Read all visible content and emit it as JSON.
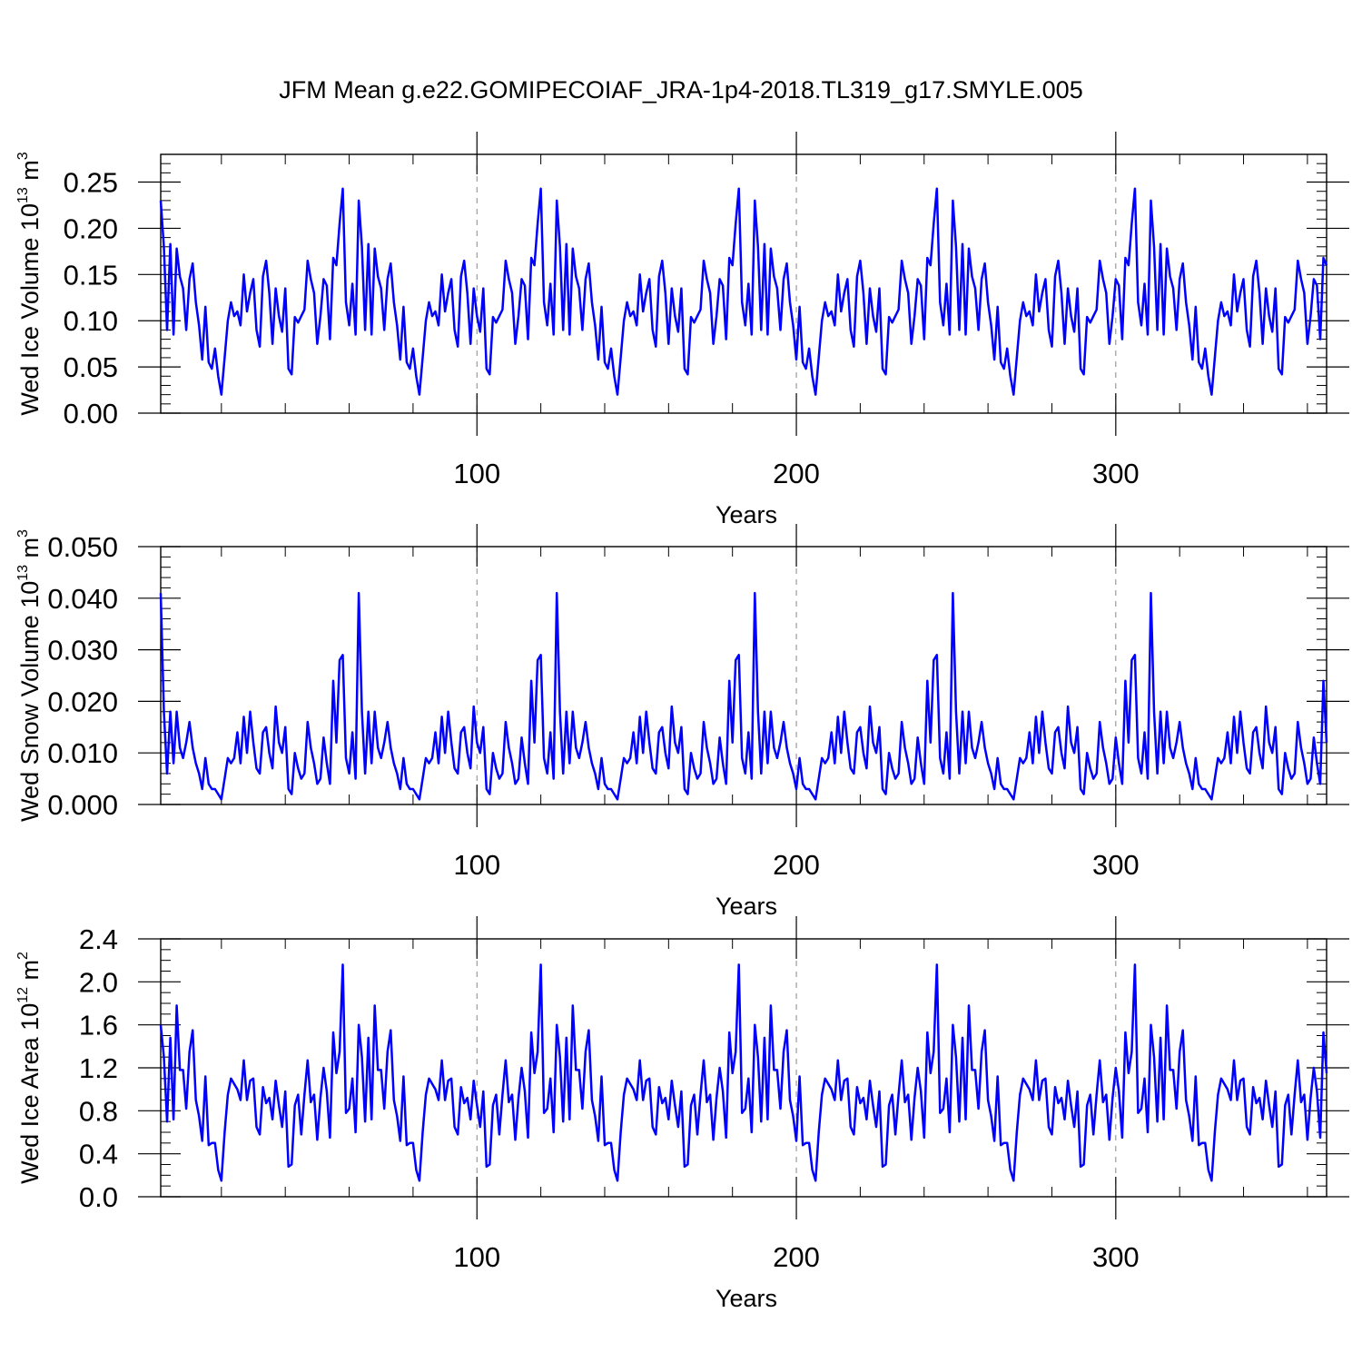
{
  "title": "JFM Mean g.e22.GOMIPECOIAF_JRA-1p4-2018.TL319_g17.SMYLE.005",
  "colors": {
    "series": "#0000ff",
    "axis": "#000000",
    "grid": "#888888"
  },
  "chart_data": [
    {
      "type": "line",
      "name": "ice-volume",
      "ylabel_main": "Wed Ice Volume 10",
      "ylabel_exp": "13",
      "ylabel_unit": " m",
      "ylabel_unit_exp": "3",
      "xlabel": "Years",
      "xlim": [
        1,
        366
      ],
      "ylim": [
        0,
        0.28
      ],
      "y_major_ticks": [
        0,
        0.05,
        0.1,
        0.15,
        0.2,
        0.25
      ],
      "y_tick_labels": [
        "0.00",
        "0.05",
        "0.10",
        "0.15",
        "0.20",
        "0.25"
      ],
      "y_minor_step": 0.01,
      "x_major_ticks": [
        100,
        200,
        300
      ],
      "x_tick_labels": [
        "100",
        "200",
        "300"
      ],
      "x_minor_step": 20,
      "vertical_gridlines": [
        100,
        200,
        300
      ],
      "cycle_length": 62,
      "values": [
        0.23,
        0.18,
        0.09,
        0.183,
        0.085,
        0.178,
        0.148,
        0.135,
        0.09,
        0.145,
        0.162,
        0.12,
        0.095,
        0.058,
        0.115,
        0.055,
        0.048,
        0.07,
        0.04,
        0.02,
        0.06,
        0.1,
        0.12,
        0.105,
        0.11,
        0.095,
        0.15,
        0.11,
        0.13,
        0.145,
        0.09,
        0.072,
        0.148,
        0.165,
        0.13,
        0.075,
        0.135,
        0.105,
        0.088,
        0.135,
        0.048,
        0.042,
        0.104,
        0.098,
        0.105,
        0.112,
        0.165,
        0.145,
        0.13,
        0.075,
        0.105,
        0.145,
        0.138,
        0.08,
        0.168,
        0.16,
        0.205,
        0.243,
        0.12,
        0.095,
        0.14,
        0.085
      ]
    },
    {
      "type": "line",
      "name": "snow-volume",
      "ylabel_main": "Wed Snow Volume 10",
      "ylabel_exp": "13",
      "ylabel_unit": " m",
      "ylabel_unit_exp": "3",
      "xlabel": "Years",
      "xlim": [
        1,
        366
      ],
      "ylim": [
        0,
        0.05
      ],
      "y_major_ticks": [
        0,
        0.01,
        0.02,
        0.03,
        0.04,
        0.05
      ],
      "y_tick_labels": [
        "0.000",
        "0.010",
        "0.020",
        "0.030",
        "0.040",
        "0.050"
      ],
      "y_minor_step": 0.002,
      "x_major_ticks": [
        100,
        200,
        300
      ],
      "x_tick_labels": [
        "100",
        "200",
        "300"
      ],
      "x_minor_step": 20,
      "vertical_gridlines": [
        100,
        200,
        300
      ],
      "cycle_length": 62,
      "values": [
        0.041,
        0.018,
        0.006,
        0.018,
        0.008,
        0.018,
        0.011,
        0.009,
        0.012,
        0.016,
        0.011,
        0.008,
        0.006,
        0.003,
        0.009,
        0.004,
        0.003,
        0.003,
        0.002,
        0.001,
        0.005,
        0.009,
        0.008,
        0.009,
        0.014,
        0.008,
        0.017,
        0.01,
        0.018,
        0.012,
        0.007,
        0.006,
        0.014,
        0.015,
        0.01,
        0.007,
        0.019,
        0.012,
        0.01,
        0.015,
        0.003,
        0.002,
        0.01,
        0.007,
        0.005,
        0.006,
        0.016,
        0.011,
        0.008,
        0.004,
        0.005,
        0.013,
        0.008,
        0.004,
        0.024,
        0.012,
        0.028,
        0.029,
        0.009,
        0.006,
        0.014,
        0.005
      ]
    },
    {
      "type": "line",
      "name": "ice-area",
      "ylabel_main": "Wed Ice Area 10",
      "ylabel_exp": "12",
      "ylabel_unit": " m",
      "ylabel_unit_exp": "2",
      "xlabel": "Years",
      "xlim": [
        1,
        366
      ],
      "ylim": [
        0,
        2.4
      ],
      "y_major_ticks": [
        0,
        0.4,
        0.8,
        1.2,
        1.6,
        2.0,
        2.4
      ],
      "y_tick_labels": [
        "0.0",
        "0.4",
        "0.8",
        "1.2",
        "1.6",
        "2.0",
        "2.4"
      ],
      "y_minor_step": 0.1,
      "x_major_ticks": [
        100,
        200,
        300
      ],
      "x_tick_labels": [
        "100",
        "200",
        "300"
      ],
      "x_minor_step": 20,
      "vertical_gridlines": [
        100,
        200,
        300
      ],
      "cycle_length": 62,
      "values": [
        1.6,
        1.3,
        0.7,
        1.48,
        0.72,
        1.78,
        1.18,
        1.18,
        0.82,
        1.35,
        1.55,
        0.9,
        0.75,
        0.52,
        1.12,
        0.48,
        0.5,
        0.5,
        0.25,
        0.15,
        0.6,
        0.95,
        1.1,
        1.05,
        1.0,
        0.9,
        1.27,
        0.9,
        1.08,
        1.1,
        0.65,
        0.58,
        1.02,
        0.87,
        0.92,
        0.72,
        1.08,
        0.85,
        0.65,
        0.98,
        0.28,
        0.3,
        0.85,
        0.95,
        0.58,
        0.95,
        1.27,
        0.88,
        0.95,
        0.53,
        0.92,
        1.2,
        0.98,
        0.55,
        1.53,
        1.15,
        1.35,
        2.16,
        0.78,
        0.82,
        1.1,
        0.6
      ]
    }
  ]
}
